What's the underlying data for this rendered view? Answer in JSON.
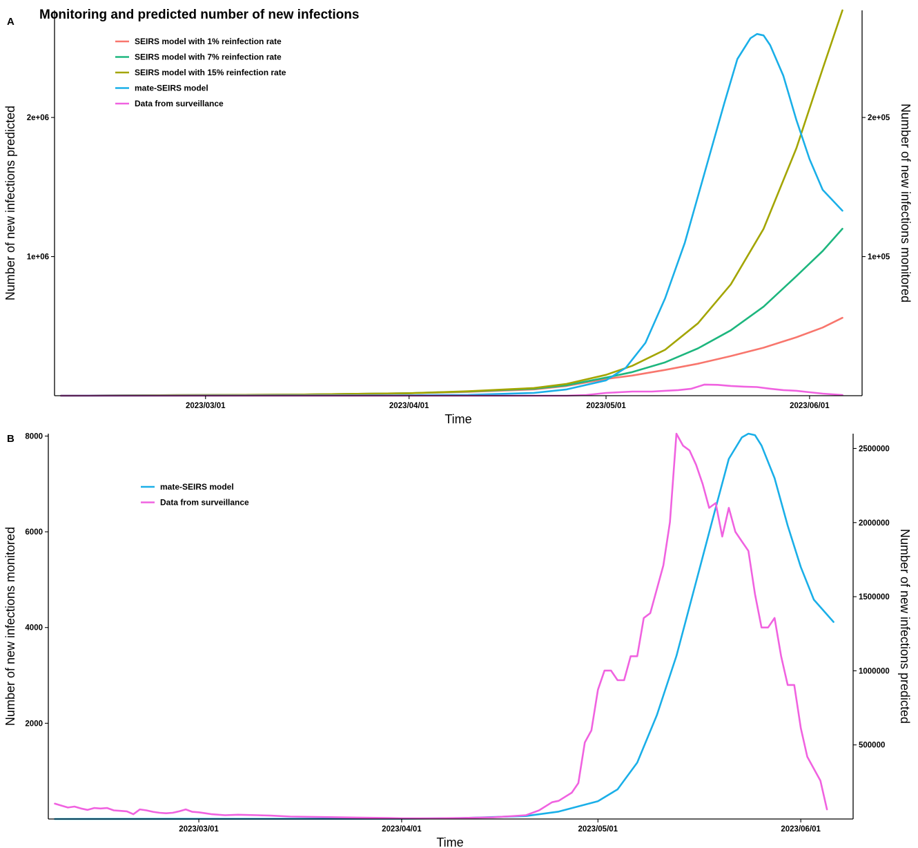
{
  "colors": {
    "seirs_1": "#F8766D",
    "seirs_7": "#1DB67E",
    "seirs_15": "#A3A500",
    "mate": "#1AAFE8",
    "surveillance": "#F062E0"
  },
  "chart_data": [
    {
      "panel": "A",
      "type": "line",
      "title": "Monitoring and predicted number of new infections",
      "xlabel": "Time",
      "ylabel_left": "Number of new infections predicted",
      "ylabel_right": "Number of new infections monitored",
      "x_domain": [
        "2023-02-06",
        "2023-06-09"
      ],
      "x_ticks": [
        {
          "date": "2023-03-01",
          "label": "2023/03/01"
        },
        {
          "date": "2023-04-01",
          "label": "2023/04/01"
        },
        {
          "date": "2023-05-01",
          "label": "2023/05/01"
        },
        {
          "date": "2023-06-01",
          "label": "2023/06/01"
        }
      ],
      "ylim_left": [
        0,
        2770000
      ],
      "yticks_left": [
        {
          "value": 1000000,
          "label": "1e+06"
        },
        {
          "value": 2000000,
          "label": "2e+06"
        }
      ],
      "ylim_right": [
        0,
        277000
      ],
      "yticks_right": [
        {
          "value": 100000,
          "label": "1e+05"
        },
        {
          "value": 200000,
          "label": "2e+05"
        }
      ],
      "grid": false,
      "legend_position": "top-left",
      "legend": [
        {
          "label": "SEIRS model with 1% reinfection rate",
          "color_key": "seirs_1"
        },
        {
          "label": "SEIRS model with 7% reinfection rate",
          "color_key": "seirs_7"
        },
        {
          "label": "SEIRS model with 15% reinfection rate",
          "color_key": "seirs_15"
        },
        {
          "label": "mate-SEIRS model",
          "color_key": "mate"
        },
        {
          "label": "Data from surveillance",
          "color_key": "surveillance"
        }
      ],
      "series": [
        {
          "name": "SEIRS model with 1% reinfection rate",
          "color_key": "seirs_1",
          "axis": "left",
          "points": [
            [
              "2023-02-07",
              0
            ],
            [
              "2023-03-01",
              5000
            ],
            [
              "2023-03-15",
              8000
            ],
            [
              "2023-04-01",
              18000
            ],
            [
              "2023-04-10",
              28000
            ],
            [
              "2023-04-20",
              45000
            ],
            [
              "2023-04-25",
              70000
            ],
            [
              "2023-05-01",
              120000
            ],
            [
              "2023-05-05",
              145000
            ],
            [
              "2023-05-10",
              185000
            ],
            [
              "2023-05-15",
              230000
            ],
            [
              "2023-05-20",
              285000
            ],
            [
              "2023-05-25",
              345000
            ],
            [
              "2023-05-30",
              420000
            ],
            [
              "2023-06-03",
              490000
            ],
            [
              "2023-06-06",
              560000
            ]
          ]
        },
        {
          "name": "SEIRS model with 7% reinfection rate",
          "color_key": "seirs_7",
          "axis": "left",
          "points": [
            [
              "2023-02-07",
              0
            ],
            [
              "2023-03-01",
              5000
            ],
            [
              "2023-03-15",
              8000
            ],
            [
              "2023-04-01",
              18000
            ],
            [
              "2023-04-10",
              30000
            ],
            [
              "2023-04-20",
              50000
            ],
            [
              "2023-04-25",
              75000
            ],
            [
              "2023-05-01",
              130000
            ],
            [
              "2023-05-05",
              170000
            ],
            [
              "2023-05-10",
              240000
            ],
            [
              "2023-05-15",
              340000
            ],
            [
              "2023-05-20",
              470000
            ],
            [
              "2023-05-25",
              640000
            ],
            [
              "2023-05-30",
              860000
            ],
            [
              "2023-06-03",
              1040000
            ],
            [
              "2023-06-06",
              1200000
            ]
          ]
        },
        {
          "name": "SEIRS model with 15% reinfection rate",
          "color_key": "seirs_15",
          "axis": "left",
          "points": [
            [
              "2023-02-07",
              0
            ],
            [
              "2023-03-01",
              5000
            ],
            [
              "2023-03-15",
              8000
            ],
            [
              "2023-04-01",
              18000
            ],
            [
              "2023-04-10",
              32000
            ],
            [
              "2023-04-20",
              55000
            ],
            [
              "2023-04-25",
              85000
            ],
            [
              "2023-05-01",
              150000
            ],
            [
              "2023-05-05",
              215000
            ],
            [
              "2023-05-10",
              330000
            ],
            [
              "2023-05-15",
              520000
            ],
            [
              "2023-05-20",
              800000
            ],
            [
              "2023-05-25",
              1200000
            ],
            [
              "2023-05-30",
              1780000
            ],
            [
              "2023-06-03",
              2350000
            ],
            [
              "2023-06-06",
              2770000
            ]
          ]
        },
        {
          "name": "mate-SEIRS model",
          "color_key": "mate",
          "axis": "left",
          "points": [
            [
              "2023-02-07",
              0
            ],
            [
              "2023-04-01",
              3000
            ],
            [
              "2023-04-10",
              6000
            ],
            [
              "2023-04-20",
              20000
            ],
            [
              "2023-04-25",
              45000
            ],
            [
              "2023-05-01",
              110000
            ],
            [
              "2023-05-04",
              200000
            ],
            [
              "2023-05-07",
              380000
            ],
            [
              "2023-05-10",
              700000
            ],
            [
              "2023-05-13",
              1100000
            ],
            [
              "2023-05-16",
              1600000
            ],
            [
              "2023-05-19",
              2100000
            ],
            [
              "2023-05-21",
              2420000
            ],
            [
              "2023-05-23",
              2570000
            ],
            [
              "2023-05-24",
              2600000
            ],
            [
              "2023-05-25",
              2590000
            ],
            [
              "2023-05-26",
              2520000
            ],
            [
              "2023-05-28",
              2300000
            ],
            [
              "2023-05-30",
              1980000
            ],
            [
              "2023-06-01",
              1700000
            ],
            [
              "2023-06-03",
              1480000
            ],
            [
              "2023-06-06",
              1330000
            ]
          ]
        },
        {
          "name": "Data from surveillance",
          "color_key": "surveillance",
          "axis": "right",
          "points": [
            [
              "2023-02-07",
              0
            ],
            [
              "2023-04-25",
              0
            ],
            [
              "2023-04-28",
              500
            ],
            [
              "2023-05-01",
              2000
            ],
            [
              "2023-05-03",
              2500
            ],
            [
              "2023-05-05",
              3000
            ],
            [
              "2023-05-08",
              3000
            ],
            [
              "2023-05-10",
              3500
            ],
            [
              "2023-05-12",
              4000
            ],
            [
              "2023-05-14",
              5000
            ],
            [
              "2023-05-16",
              8000
            ],
            [
              "2023-05-18",
              7800
            ],
            [
              "2023-05-20",
              7000
            ],
            [
              "2023-05-22",
              6500
            ],
            [
              "2023-05-24",
              6200
            ],
            [
              "2023-05-26",
              5000
            ],
            [
              "2023-05-28",
              4000
            ],
            [
              "2023-05-30",
              3500
            ],
            [
              "2023-06-01",
              2500
            ],
            [
              "2023-06-03",
              1500
            ],
            [
              "2023-06-06",
              500
            ]
          ]
        }
      ]
    },
    {
      "panel": "B",
      "type": "line",
      "xlabel": "Time",
      "ylabel_left": "Number of new infections monitored",
      "ylabel_right": "Number of new infections predicted",
      "x_domain": [
        "2023-02-06",
        "2023-06-09"
      ],
      "x_ticks": [
        {
          "date": "2023-03-01",
          "label": "2023/03/01"
        },
        {
          "date": "2023-04-01",
          "label": "2023/04/01"
        },
        {
          "date": "2023-05-01",
          "label": "2023/05/01"
        },
        {
          "date": "2023-06-01",
          "label": "2023/06/01"
        }
      ],
      "ylim_left": [
        0,
        8050
      ],
      "yticks_left": [
        {
          "value": 2000,
          "label": "2000"
        },
        {
          "value": 4000,
          "label": "4000"
        },
        {
          "value": 6000,
          "label": "6000"
        },
        {
          "value": 8000,
          "label": "8000"
        }
      ],
      "ylim_right": [
        0,
        2600000
      ],
      "yticks_right": [
        {
          "value": 500000,
          "label": "500000"
        },
        {
          "value": 1000000,
          "label": "1000000"
        },
        {
          "value": 1500000,
          "label": "1500000"
        },
        {
          "value": 2000000,
          "label": "2000000"
        },
        {
          "value": 2500000,
          "label": "2500000"
        }
      ],
      "grid": false,
      "legend_position": "top-left",
      "legend": [
        {
          "label": "mate-SEIRS model",
          "color_key": "mate"
        },
        {
          "label": "Data from surveillance",
          "color_key": "surveillance"
        }
      ],
      "series": [
        {
          "name": "mate-SEIRS model",
          "color_key": "mate",
          "axis": "right",
          "points": [
            [
              "2023-02-07",
              0
            ],
            [
              "2023-04-01",
              2000
            ],
            [
              "2023-04-10",
              6000
            ],
            [
              "2023-04-20",
              20000
            ],
            [
              "2023-04-25",
              50000
            ],
            [
              "2023-05-01",
              120000
            ],
            [
              "2023-05-04",
              200000
            ],
            [
              "2023-05-07",
              380000
            ],
            [
              "2023-05-10",
              700000
            ],
            [
              "2023-05-13",
              1100000
            ],
            [
              "2023-05-16",
              1600000
            ],
            [
              "2023-05-19",
              2100000
            ],
            [
              "2023-05-21",
              2430000
            ],
            [
              "2023-05-23",
              2575000
            ],
            [
              "2023-05-24",
              2600000
            ],
            [
              "2023-05-25",
              2590000
            ],
            [
              "2023-05-26",
              2520000
            ],
            [
              "2023-05-28",
              2300000
            ],
            [
              "2023-05-30",
              1980000
            ],
            [
              "2023-06-01",
              1700000
            ],
            [
              "2023-06-03",
              1480000
            ],
            [
              "2023-06-06",
              1330000
            ]
          ]
        },
        {
          "name": "Data from surveillance",
          "color_key": "surveillance",
          "axis": "left",
          "points": [
            [
              "2023-02-07",
              320
            ],
            [
              "2023-02-08",
              280
            ],
            [
              "2023-02-09",
              240
            ],
            [
              "2023-02-10",
              260
            ],
            [
              "2023-02-11",
              220
            ],
            [
              "2023-02-12",
              190
            ],
            [
              "2023-02-13",
              230
            ],
            [
              "2023-02-14",
              220
            ],
            [
              "2023-02-15",
              230
            ],
            [
              "2023-02-16",
              180
            ],
            [
              "2023-02-17",
              170
            ],
            [
              "2023-02-18",
              160
            ],
            [
              "2023-02-19",
              100
            ],
            [
              "2023-02-20",
              200
            ],
            [
              "2023-02-21",
              180
            ],
            [
              "2023-02-22",
              150
            ],
            [
              "2023-02-23",
              130
            ],
            [
              "2023-02-24",
              120
            ],
            [
              "2023-02-25",
              130
            ],
            [
              "2023-02-26",
              160
            ],
            [
              "2023-02-27",
              200
            ],
            [
              "2023-02-28",
              150
            ],
            [
              "2023-03-01",
              140
            ],
            [
              "2023-03-02",
              120
            ],
            [
              "2023-03-03",
              100
            ],
            [
              "2023-03-05",
              80
            ],
            [
              "2023-03-07",
              90
            ],
            [
              "2023-03-10",
              80
            ],
            [
              "2023-03-12",
              70
            ],
            [
              "2023-03-15",
              50
            ],
            [
              "2023-03-18",
              45
            ],
            [
              "2023-03-20",
              40
            ],
            [
              "2023-03-25",
              30
            ],
            [
              "2023-03-30",
              20
            ],
            [
              "2023-04-01",
              15
            ],
            [
              "2023-04-05",
              15
            ],
            [
              "2023-04-10",
              20
            ],
            [
              "2023-04-15",
              35
            ],
            [
              "2023-04-18",
              60
            ],
            [
              "2023-04-20",
              80
            ],
            [
              "2023-04-22",
              180
            ],
            [
              "2023-04-24",
              350
            ],
            [
              "2023-04-25",
              380
            ],
            [
              "2023-04-27",
              550
            ],
            [
              "2023-04-28",
              750
            ],
            [
              "2023-04-29",
              1600
            ],
            [
              "2023-04-30",
              1850
            ],
            [
              "2023-05-01",
              2700
            ],
            [
              "2023-05-02",
              3100
            ],
            [
              "2023-05-03",
              3100
            ],
            [
              "2023-05-04",
              2900
            ],
            [
              "2023-05-05",
              2900
            ],
            [
              "2023-05-06",
              3400
            ],
            [
              "2023-05-07",
              3400
            ],
            [
              "2023-05-08",
              4200
            ],
            [
              "2023-05-09",
              4300
            ],
            [
              "2023-05-10",
              4800
            ],
            [
              "2023-05-11",
              5300
            ],
            [
              "2023-05-12",
              6200
            ],
            [
              "2023-05-13",
              8050
            ],
            [
              "2023-05-14",
              7800
            ],
            [
              "2023-05-15",
              7700
            ],
            [
              "2023-05-16",
              7400
            ],
            [
              "2023-05-17",
              7000
            ],
            [
              "2023-05-18",
              6500
            ],
            [
              "2023-05-19",
              6600
            ],
            [
              "2023-05-20",
              5900
            ],
            [
              "2023-05-21",
              6500
            ],
            [
              "2023-05-22",
              6000
            ],
            [
              "2023-05-23",
              5800
            ],
            [
              "2023-05-24",
              5600
            ],
            [
              "2023-05-25",
              4700
            ],
            [
              "2023-05-26",
              4000
            ],
            [
              "2023-05-27",
              4000
            ],
            [
              "2023-05-28",
              4200
            ],
            [
              "2023-05-29",
              3400
            ],
            [
              "2023-05-30",
              2800
            ],
            [
              "2023-05-31",
              2800
            ],
            [
              "2023-06-01",
              1900
            ],
            [
              "2023-06-02",
              1300
            ],
            [
              "2023-06-04",
              800
            ],
            [
              "2023-06-05",
              200
            ]
          ]
        }
      ]
    }
  ]
}
